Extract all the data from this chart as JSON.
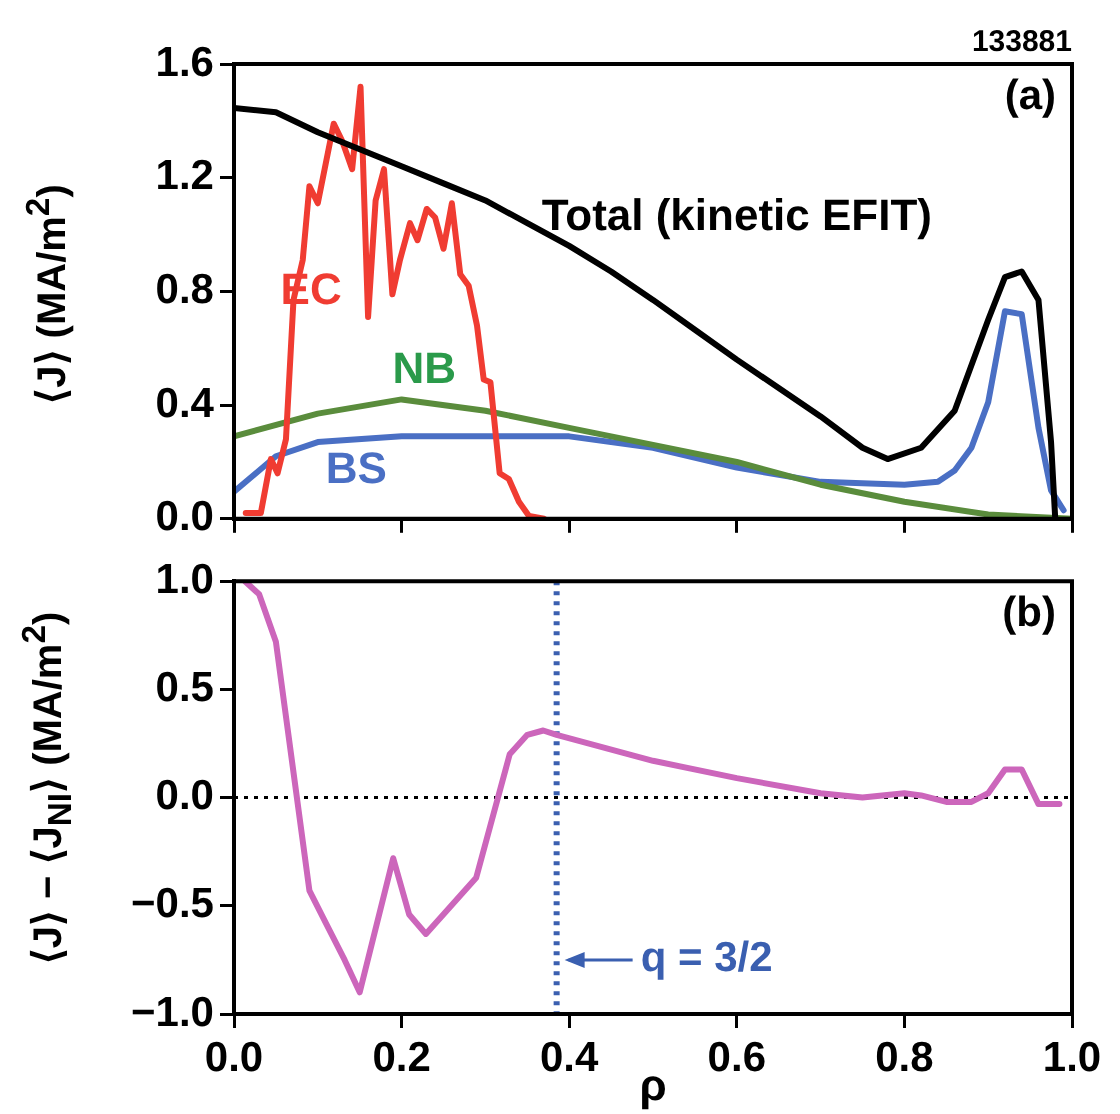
{
  "chart_data": [
    {
      "type": "line",
      "ylabel": "⟨J⟩ (MA/m$^{2}$)",
      "annotations": [
        "133881",
        "(a)"
      ],
      "xlim": [
        0,
        1
      ],
      "xticks": [
        0,
        0.2,
        0.4,
        0.6,
        0.8,
        1
      ],
      "ylim": [
        0,
        1.6
      ],
      "yticks": [
        {
          "value": 0,
          "label": "0.0"
        },
        {
          "value": 0.4,
          "label": "0.4"
        },
        {
          "value": 0.8,
          "label": "0.8"
        },
        {
          "value": 1.2,
          "label": "1.2"
        },
        {
          "value": 1.6,
          "label": "1.6"
        }
      ],
      "tick_labels": "y",
      "marker": "none",
      "line_style": "solid",
      "series": [
        {
          "name": "Total (kinetic EFIT)",
          "color": "#000000",
          "x": [
            0,
            0.05,
            0.1,
            0.15,
            0.2,
            0.25,
            0.3,
            0.35,
            0.4,
            0.45,
            0.5,
            0.55,
            0.6,
            0.65,
            0.7,
            0.75,
            0.78,
            0.82,
            0.86,
            0.9,
            0.92,
            0.94,
            0.96,
            0.975,
            0.98
          ],
          "values": [
            1.445,
            1.43,
            1.36,
            1.3,
            1.24,
            1.18,
            1.12,
            1.04,
            0.96,
            0.87,
            0.77,
            0.665,
            0.56,
            0.46,
            0.36,
            0.25,
            0.21,
            0.25,
            0.38,
            0.7,
            0.85,
            0.87,
            0.77,
            0.27,
            0.0
          ]
        },
        {
          "name": "EC",
          "color": "#f03c32",
          "x": [
            0.014,
            0.032,
            0.044,
            0.052,
            0.062,
            0.071,
            0.082,
            0.09,
            0.1,
            0.119,
            0.129,
            0.141,
            0.151,
            0.16,
            0.169,
            0.179,
            0.189,
            0.198,
            0.21,
            0.219,
            0.23,
            0.24,
            0.25,
            0.26,
            0.27,
            0.28,
            0.29,
            0.298,
            0.306,
            0.317,
            0.328,
            0.34,
            0.352,
            0.37
          ],
          "values": [
            0.02,
            0.02,
            0.21,
            0.16,
            0.28,
            0.77,
            0.91,
            1.17,
            1.11,
            1.39,
            1.33,
            1.23,
            1.52,
            0.71,
            1.12,
            1.23,
            0.79,
            0.91,
            1.04,
            0.98,
            1.09,
            1.06,
            0.95,
            1.11,
            0.86,
            0.82,
            0.68,
            0.49,
            0.48,
            0.16,
            0.14,
            0.06,
            0.01,
            0
          ]
        },
        {
          "name": "NB",
          "color": "#5a8c3c",
          "x": [
            0,
            0.1,
            0.2,
            0.3,
            0.4,
            0.5,
            0.6,
            0.7,
            0.8,
            0.9,
            1.0
          ],
          "values": [
            0.29,
            0.37,
            0.42,
            0.38,
            0.32,
            0.26,
            0.2,
            0.12,
            0.06,
            0.015,
            0
          ]
        },
        {
          "name": "BS",
          "color": "#4a6fc4",
          "x": [
            0,
            0.05,
            0.1,
            0.2,
            0.3,
            0.4,
            0.5,
            0.6,
            0.7,
            0.8,
            0.84,
            0.86,
            0.88,
            0.9,
            0.92,
            0.94,
            0.96,
            0.975,
            0.99
          ],
          "values": [
            0.095,
            0.22,
            0.27,
            0.29,
            0.29,
            0.29,
            0.25,
            0.18,
            0.13,
            0.12,
            0.13,
            0.17,
            0.25,
            0.41,
            0.73,
            0.72,
            0.32,
            0.1,
            0.03
          ]
        }
      ]
    },
    {
      "type": "line",
      "xlabel": "ρ",
      "ylabel": "⟨J⟩ − ⟨J$_{NI}$⟩ (MA/m$^{2}$)",
      "annotations": [
        "(b)",
        {
          "text": "q = 3/2",
          "x": 0.385,
          "y": -0.75
        }
      ],
      "xlim": [
        0,
        1
      ],
      "xticks": [
        {
          "value": 0,
          "label": "0.0"
        },
        {
          "value": 0.2,
          "label": "0.2"
        },
        {
          "value": 0.4,
          "label": "0.4"
        },
        {
          "value": 0.6,
          "label": "0.6"
        },
        {
          "value": 0.8,
          "label": "0.8"
        },
        {
          "value": 1,
          "label": "1.0"
        }
      ],
      "ylim": [
        -1,
        1
      ],
      "yticks": [
        {
          "value": -1,
          "label": "−1.0"
        },
        {
          "value": -0.5,
          "label": "−0.5"
        },
        {
          "value": 0,
          "label": "0.0"
        },
        {
          "value": 0.5,
          "label": "0.5"
        },
        {
          "value": 1,
          "label": "1.0"
        }
      ],
      "marker": "none",
      "line_style": "solid",
      "ref_lines": [
        {
          "axis": "x",
          "value": 0.385,
          "color": "#3a5fb0",
          "line_style": "dotted"
        },
        {
          "axis": "y",
          "value": 0,
          "color": "#000000",
          "line_style": "dotted"
        }
      ],
      "series": [
        {
          "color": "#cc66bb",
          "x": [
            0.013,
            0.03,
            0.05,
            0.09,
            0.111,
            0.132,
            0.15,
            0.19,
            0.209,
            0.229,
            0.289,
            0.329,
            0.35,
            0.369,
            0.385,
            0.5,
            0.6,
            0.7,
            0.75,
            0.8,
            0.82,
            0.85,
            0.88,
            0.9,
            0.92,
            0.94,
            0.96,
            0.985
          ],
          "values": [
            1.0,
            0.94,
            0.72,
            -0.43,
            -0.59,
            -0.75,
            -0.9,
            -0.28,
            -0.54,
            -0.63,
            -0.37,
            0.2,
            0.29,
            0.31,
            0.29,
            0.17,
            0.09,
            0.02,
            0.0,
            0.02,
            0.01,
            -0.02,
            -0.02,
            0.02,
            0.13,
            0.13,
            -0.03,
            -0.03
          ]
        }
      ]
    }
  ]
}
